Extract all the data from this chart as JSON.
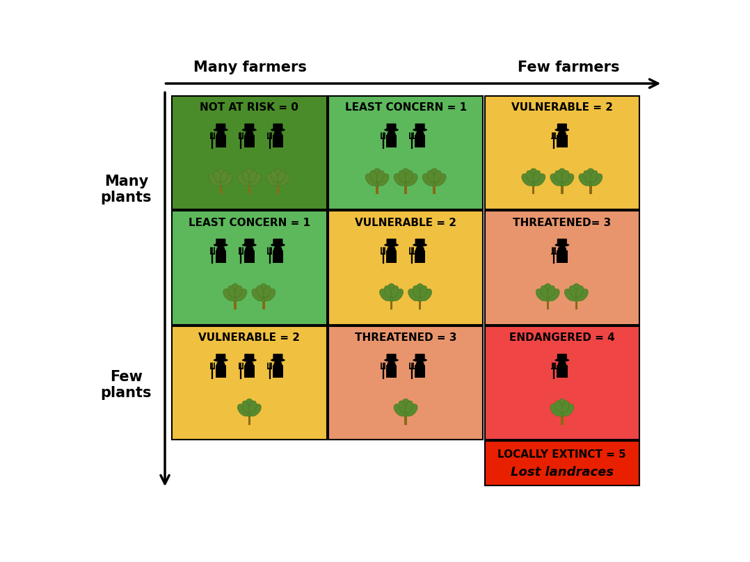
{
  "title_left": "Many farmers",
  "title_right": "Few farmers",
  "ylabel_top": "Many\nplants",
  "ylabel_bottom": "Few\nplants",
  "cells": [
    {
      "row": 0,
      "col": 0,
      "label": "NOT AT RISK = 0",
      "color": "#4a8c2a",
      "farmers": 3,
      "plants": 3
    },
    {
      "row": 0,
      "col": 1,
      "label": "LEAST CONCERN = 1",
      "color": "#5db85c",
      "farmers": 2,
      "plants": 3
    },
    {
      "row": 0,
      "col": 2,
      "label": "VULNERABLE = 2",
      "color": "#f0c040",
      "farmers": 1,
      "plants": 3
    },
    {
      "row": 1,
      "col": 0,
      "label": "LEAST CONCERN = 1",
      "color": "#5db85c",
      "farmers": 3,
      "plants": 2
    },
    {
      "row": 1,
      "col": 1,
      "label": "VULNERABLE = 2",
      "color": "#f0c040",
      "farmers": 2,
      "plants": 2
    },
    {
      "row": 1,
      "col": 2,
      "label": "THREATENED= 3",
      "color": "#e8956d",
      "farmers": 1,
      "plants": 2
    },
    {
      "row": 2,
      "col": 0,
      "label": "VULNERABLE = 2",
      "color": "#f0c040",
      "farmers": 3,
      "plants": 1
    },
    {
      "row": 2,
      "col": 1,
      "label": "THREATENED = 3",
      "color": "#e8956d",
      "farmers": 2,
      "plants": 1
    },
    {
      "row": 2,
      "col": 2,
      "label": "ENDANGERED = 4",
      "color": "#f04545",
      "farmers": 1,
      "plants": 1
    }
  ],
  "extra_cell": {
    "col": 2,
    "label": "LOCALLY EXTINCT = 5",
    "sublabel": "Lost landraces",
    "color": "#e82000"
  },
  "background_color": "#ffffff",
  "label_fontsize": 11,
  "axis_label_fontsize": 15
}
